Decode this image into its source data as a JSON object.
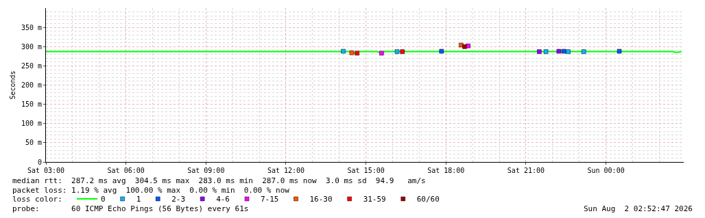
{
  "chart_data": {
    "type": "line",
    "ylabel": "Seconds",
    "xlim": [
      "2026-08-01T03:00",
      "2026-08-02T02:55"
    ],
    "xticks": [
      {
        "value": "2026-08-01T03:00",
        "label": "Sat 03:00"
      },
      {
        "value": "2026-08-01T06:00",
        "label": "Sat 06:00"
      },
      {
        "value": "2026-08-01T09:00",
        "label": "Sat 09:00"
      },
      {
        "value": "2026-08-01T12:00",
        "label": "Sat 12:00"
      },
      {
        "value": "2026-08-01T15:00",
        "label": "Sat 15:00"
      },
      {
        "value": "2026-08-01T18:00",
        "label": "Sat 18:00"
      },
      {
        "value": "2026-08-01T21:00",
        "label": "Sat 21:00"
      },
      {
        "value": "2026-08-02T00:00",
        "label": "Sun 00:00"
      }
    ],
    "ylim": [
      0,
      400
    ],
    "yticks": [
      0,
      {
        "value": 50,
        "label": "50 m"
      },
      {
        "value": 100,
        "label": "100 m"
      },
      {
        "value": 150,
        "label": "150 m"
      },
      {
        "value": 200,
        "label": "200 m"
      },
      {
        "value": 250,
        "label": "250 m"
      },
      {
        "value": 300,
        "label": "300 m"
      },
      {
        "value": 350,
        "label": "350 m"
      }
    ],
    "grid": true,
    "legend": "bottom left",
    "series": [
      {
        "name": "0",
        "color": "#00ff00",
        "x": [
          "2026-08-01T03:00",
          "2026-08-01T05:00",
          "2026-08-01T07:00",
          "2026-08-01T09:00",
          "2026-08-01T11:00",
          "2026-08-01T13:00",
          "2026-08-01T14:30",
          "2026-08-01T14:35",
          "2026-08-01T14:42",
          "2026-08-01T15:25",
          "2026-08-01T15:35",
          "2026-08-01T15:42",
          "2026-08-01T17:00",
          "2026-08-01T19:00",
          "2026-08-01T21:00",
          "2026-08-01T23:00",
          "2026-08-02T01:00",
          "2026-08-02T02:30",
          "2026-08-02T02:40",
          "2026-08-02T02:50"
        ],
        "values": [
          287,
          287,
          287,
          287,
          287,
          287,
          287,
          283,
          287,
          287,
          283,
          287,
          287,
          287,
          287,
          287,
          287,
          287,
          285,
          287
        ]
      },
      {
        "name": "1",
        "color": "#00b7ff",
        "type": "scatter",
        "x": [
          "2026-08-01T14:09",
          "2026-08-01T16:10",
          "2026-08-01T21:45",
          "2026-08-01T22:35",
          "2026-08-01T23:10"
        ],
        "values": [
          288,
          287,
          287,
          287,
          287
        ]
      },
      {
        "name": "2-3",
        "color": "#0059ff",
        "type": "scatter",
        "x": [
          "2026-08-01T17:50",
          "2026-08-01T22:25",
          "2026-08-02T00:30"
        ],
        "values": [
          288,
          288,
          288
        ]
      },
      {
        "name": "4-6",
        "color": "#8f00ff",
        "type": "scatter",
        "x": [
          "2026-08-01T21:30",
          "2026-08-01T22:14"
        ],
        "values": [
          287,
          288
        ]
      },
      {
        "name": "7-15",
        "color": "#ff00ff",
        "type": "scatter",
        "x": [
          "2026-08-01T15:35",
          "2026-08-01T18:50"
        ],
        "values": [
          283,
          302
        ]
      },
      {
        "name": "16-30",
        "color": "#ff5500",
        "type": "scatter",
        "x": [
          "2026-08-01T14:28",
          "2026-08-01T18:34"
        ],
        "values": [
          284,
          304
        ]
      },
      {
        "name": "31-59",
        "color": "#ff0000",
        "type": "scatter",
        "x": [
          "2026-08-01T14:40",
          "2026-08-01T16:22"
        ],
        "values": [
          283,
          287
        ]
      },
      {
        "name": "60/60",
        "color": "#a10000",
        "type": "scatter",
        "x": [
          "2026-08-01T18:42"
        ],
        "values": [
          300
        ]
      }
    ],
    "annotations": [
      "median rtt:  287.2 ms avg  304.5 ms max  283.0 ms min  287.0 ms now  3.0 ms sd  94.9   am/s",
      "packet loss: 1.19 % avg  100.00 % max  0.00 % min  0.00 % now",
      "loss color:",
      "probe:       60 ICMP Echo Pings (56 Bytes) every 61s",
      "Sun Aug  2 02:52:47 2026"
    ]
  }
}
